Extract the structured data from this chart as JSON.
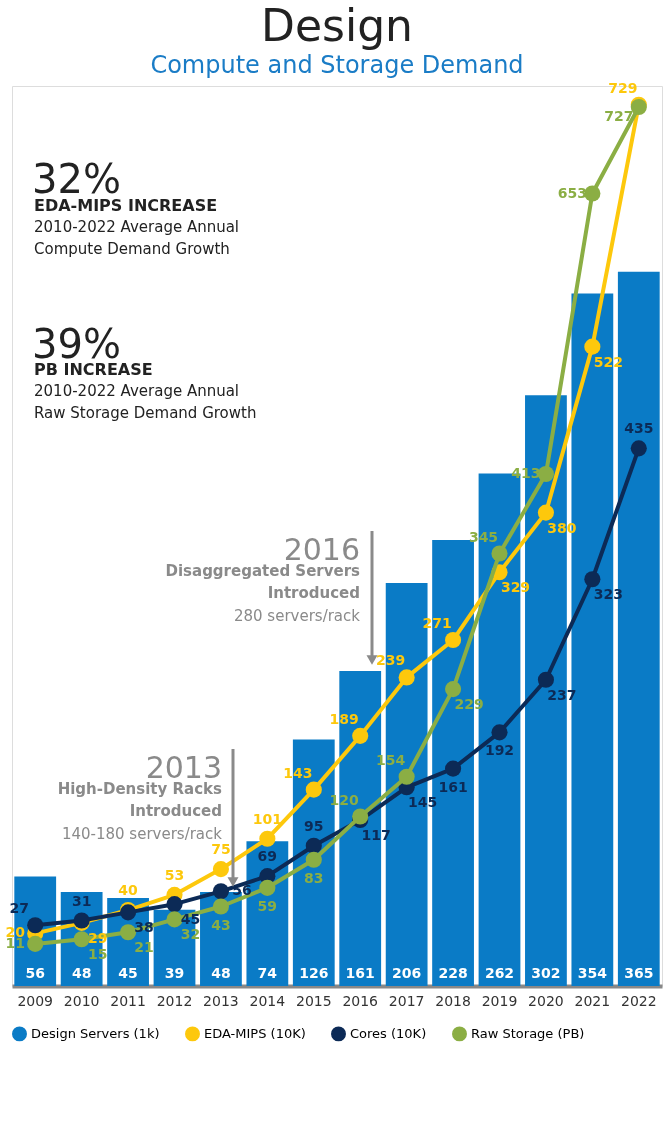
{
  "chart_data": {
    "type": "bar",
    "title": "Design",
    "subtitle": "Compute and Storage Demand",
    "categories": [
      "2009",
      "2010",
      "2011",
      "2012",
      "2013",
      "2014",
      "2015",
      "2016",
      "2017",
      "2018",
      "2019",
      "2020",
      "2021",
      "2022"
    ],
    "series": [
      {
        "name": "Design Servers (1k)",
        "color": "#0a7bc6",
        "values": [
          56,
          48,
          45,
          39,
          48,
          74,
          126,
          161,
          206,
          228,
          262,
          302,
          354,
          365
        ]
      },
      {
        "name": "EDA-MIPS (10K)",
        "type": "line",
        "axis": "y2",
        "color": "#fdc80c",
        "values": [
          20,
          29,
          40,
          53,
          75,
          101,
          143,
          189,
          239,
          271,
          329,
          380,
          522,
          729
        ]
      },
      {
        "name": "Cores (10K)",
        "type": "line",
        "axis": "y2",
        "color": "#0c2a56",
        "values": [
          27,
          31,
          38,
          45,
          56,
          69,
          95,
          117,
          145,
          161,
          192,
          237,
          323,
          435
        ]
      },
      {
        "name": "Raw Storage (PB)",
        "type": "line",
        "axis": "y2",
        "color": "#8bae44",
        "values": [
          11,
          15,
          21,
          32,
          43,
          59,
          83,
          120,
          154,
          229,
          345,
          413,
          653,
          727
        ]
      }
    ],
    "ylim": [
      0,
      460
    ],
    "y2lim": [
      -25,
      745
    ],
    "tick_labels": "x",
    "grid": false,
    "legend": "bottom",
    "marker": "circle",
    "line_style": "solid",
    "data_labels": true,
    "annotations": [
      "32%",
      "EDA-MIPS INCREASE",
      "2010-2022 Average Annual\nCompute Demand Growth",
      "39%",
      "PB INCREASE",
      "2010-2022 Average Annual\nRaw Storage Demand Growth",
      "2016",
      "Disaggregated Servers\nIntroduced",
      "280 servers/rack",
      "2013",
      "High-Density Racks\nIntroduced",
      "140-180 servers/rack"
    ]
  }
}
